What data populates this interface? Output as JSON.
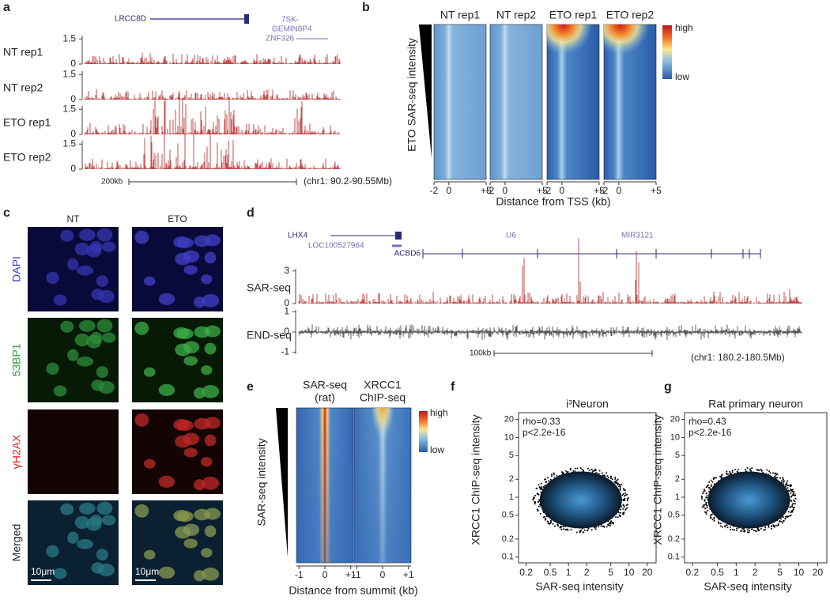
{
  "panels": {
    "a": {
      "letter": "a",
      "genes": [
        "LRCC8D",
        "7SK",
        "GEMIN8P4",
        "ZNF326"
      ],
      "tracks": [
        {
          "label": "NT rep1",
          "ylim": [
            0,
            1.7
          ],
          "ticks": [
            1.5,
            0
          ]
        },
        {
          "label": "NT rep2",
          "ylim": [
            0,
            1.7
          ],
          "ticks": [
            1.5,
            0
          ]
        },
        {
          "label": "ETO rep1",
          "ylim": [
            0,
            1.7
          ],
          "ticks": [
            1.5,
            0
          ]
        },
        {
          "label": "ETO rep2",
          "ylim": [
            0,
            1.7
          ],
          "ticks": [
            1.5,
            0
          ]
        }
      ],
      "scale": "200kb",
      "region": "(chr1: 90.2-90.55Mb)"
    },
    "b": {
      "letter": "b",
      "columns": [
        "NT rep1",
        "NT rep2",
        "ETO rep1",
        "ETO rep2"
      ],
      "ylabel": "ETO SAR-seq intensity",
      "xlim": [
        -2,
        5
      ],
      "xticks": [
        -2,
        0,
        {
          "value": 5,
          "label": "+5"
        }
      ],
      "xlabel": "Distance from TSS (kb)",
      "legend_high": "high",
      "legend_low": "low"
    },
    "c": {
      "letter": "c",
      "columns": [
        "NT",
        "ETO"
      ],
      "rows": [
        "DAPI",
        "53BP1",
        "γH2AX",
        "Merged"
      ],
      "scalebar": "10μm"
    },
    "d": {
      "letter": "d",
      "genes": [
        "LHX4",
        "LOC100527964",
        "ACBD6",
        "U6",
        "MIR3121"
      ],
      "tracks": [
        {
          "label": "SAR-seq",
          "ylim": [
            0,
            3.2
          ],
          "ticks": [
            3,
            0
          ]
        },
        {
          "label": "END-seq",
          "ylim": [
            -1.1,
            1.1
          ],
          "ticks": [
            1,
            0,
            -1
          ]
        }
      ],
      "scale": "100kb",
      "region": "(chr1: 180.2-180.5Mb)"
    },
    "e": {
      "letter": "e",
      "columns": [
        [
          "SAR-seq",
          "(rat)"
        ],
        [
          "XRCC1",
          "ChIP-seq"
        ]
      ],
      "ylabel": "SAR-seq intensity",
      "xlim": [
        -1.1,
        1.1
      ],
      "xticks": [
        -1,
        0,
        {
          "value": 1,
          "label": "+1"
        }
      ],
      "xlabel": "Distance from summit (kb)",
      "legend_high": "high",
      "legend_low": "low"
    },
    "f": {
      "letter": "f",
      "title": "i³Neuron",
      "stats": [
        "rho=0.33",
        "p<2.2e-16"
      ],
      "xlabel": "SAR-seq intensity",
      "ylabel": "XRCC1 ChIP-seq intensity",
      "log": true,
      "xlim": [
        0.15,
        28
      ],
      "ylim": [
        0.08,
        26
      ],
      "xticks": [
        0.2,
        0.5,
        1,
        2,
        5,
        10,
        20
      ],
      "yticks": [
        0.1,
        0.2,
        0.5,
        1,
        2,
        5,
        10,
        20
      ]
    },
    "g": {
      "letter": "g",
      "title": "Rat primary neuron",
      "stats": [
        "rho=0.43",
        "p<2.2e-16"
      ],
      "xlabel": "SAR-seq intensity",
      "ylabel": "XRCC1 ChIP-seq intensity",
      "log": true,
      "xlim": [
        0.15,
        28
      ],
      "ylim": [
        0.08,
        26
      ],
      "xticks": [
        0.2,
        0.5,
        1,
        2,
        5,
        10,
        20
      ],
      "yticks": [
        0.1,
        0.2,
        0.5,
        1,
        2,
        5,
        10,
        20
      ]
    }
  }
}
